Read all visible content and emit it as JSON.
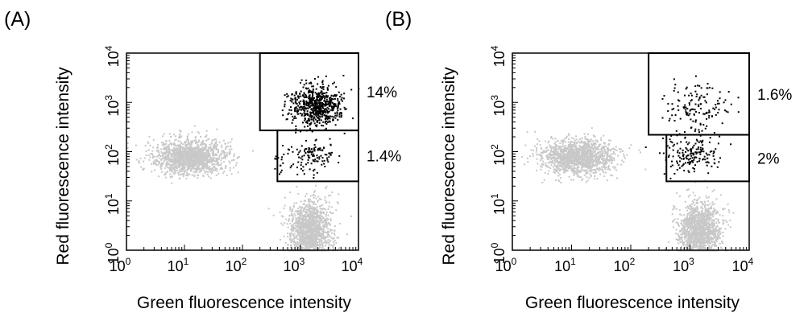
{
  "chart_data": [
    {
      "type": "scatter",
      "panel_label": "(A)",
      "xlabel": "Green fluorescence intensity",
      "ylabel": "Red fluorescence intensity",
      "x_scale": "log",
      "y_scale": "log",
      "xlim": [
        1,
        10000
      ],
      "ylim": [
        1,
        10000
      ],
      "grid": false,
      "tick_labels": [
        "10^0",
        "10^1",
        "10^2",
        "10^3",
        "10^4"
      ],
      "tick_values": [
        1,
        10,
        100,
        1000,
        10000
      ],
      "populations": [
        {
          "color": "#c8c8c8",
          "center": [
            12,
            80
          ],
          "count": 1400,
          "spread": [
            0.32,
            0.18
          ]
        },
        {
          "color": "#c8c8c8",
          "center": [
            1400,
            2.5
          ],
          "count": 1400,
          "spread": [
            0.18,
            0.3
          ]
        },
        {
          "color": "#000000",
          "center": [
            1800,
            900
          ],
          "count": 650,
          "spread": [
            0.22,
            0.2
          ]
        },
        {
          "color": "#000000",
          "center": [
            1300,
            80
          ],
          "count": 130,
          "spread": [
            0.25,
            0.2
          ]
        }
      ],
      "gates": [
        {
          "x_range": [
            200,
            10000
          ],
          "y_range": [
            270,
            10000
          ],
          "label": "14%"
        },
        {
          "x_range": [
            400,
            10000
          ],
          "y_range": [
            25,
            270
          ],
          "label": "1.4%"
        }
      ]
    },
    {
      "type": "scatter",
      "panel_label": "(B)",
      "xlabel": "Green fluorescence intensity",
      "ylabel": "Red fluorescence intensity",
      "x_scale": "log",
      "y_scale": "log",
      "xlim": [
        1,
        10000
      ],
      "ylim": [
        1,
        10000
      ],
      "grid": false,
      "tick_labels": [
        "10^0",
        "10^1",
        "10^2",
        "10^3",
        "10^4"
      ],
      "tick_values": [
        1,
        10,
        100,
        1000,
        10000
      ],
      "populations": [
        {
          "color": "#c8c8c8",
          "center": [
            12,
            80
          ],
          "count": 1400,
          "spread": [
            0.32,
            0.18
          ]
        },
        {
          "color": "#c8c8c8",
          "center": [
            1400,
            2.5
          ],
          "count": 1400,
          "spread": [
            0.18,
            0.3
          ]
        },
        {
          "color": "#000000",
          "center": [
            1200,
            800
          ],
          "count": 140,
          "spread": [
            0.28,
            0.25
          ]
        },
        {
          "color": "#000000",
          "center": [
            1100,
            90
          ],
          "count": 170,
          "spread": [
            0.22,
            0.18
          ]
        }
      ],
      "gates": [
        {
          "x_range": [
            200,
            10000
          ],
          "y_range": [
            220,
            10000
          ],
          "label": "1.6%"
        },
        {
          "x_range": [
            400,
            10000
          ],
          "y_range": [
            25,
            220
          ],
          "label": "2%"
        }
      ]
    }
  ]
}
